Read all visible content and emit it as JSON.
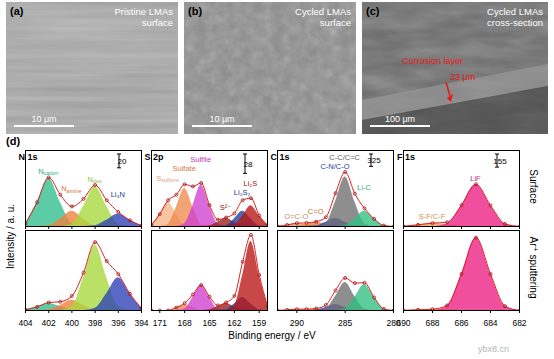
{
  "images": [
    {
      "panel": "(a)",
      "caption": [
        "Pristine LMAs",
        "surface"
      ],
      "scale_bar": "10 μm"
    },
    {
      "panel": "(b)",
      "caption": [
        "Cycled LMAs",
        "surface"
      ],
      "scale_bar": "10 μm"
    },
    {
      "panel": "(c)",
      "caption": [
        "Cycled LMAs",
        "cross-section"
      ],
      "scale_bar": "100 μm",
      "annotations": [
        {
          "text": "Corrosion layer",
          "color": "#e8191b"
        },
        {
          "text": "33 μm",
          "color": "#e8191b"
        }
      ]
    }
  ],
  "figure_label": "(d)",
  "y_label": "Intensity / a. u.",
  "x_label": "Binding energy / eV",
  "row_labels": [
    "Surface",
    "Ar⁺ sputtering"
  ],
  "watermark": "ybx8.cn",
  "chart_data": [
    {
      "type": "area",
      "title": "N 1s",
      "scale_bar": 20,
      "tick_labels": false,
      "x": [
        404,
        403,
        402,
        401,
        400,
        399,
        398,
        397,
        396,
        395,
        394
      ],
      "xlim": [
        404,
        394
      ],
      "xticks": [
        404,
        402,
        400,
        398,
        396,
        394
      ],
      "ylim": [
        0,
        110
      ],
      "series": [
        {
          "name": "N",
          "subscript": "cation",
          "color": "#2dbe8c",
          "values": [
            4,
            35,
            70,
            35,
            4,
            0,
            0,
            0,
            0,
            0,
            0
          ]
        },
        {
          "name": "N",
          "subscript": "amine",
          "color": "#ef7f3a",
          "values": [
            0,
            0,
            1,
            11,
            22,
            11,
            1,
            0,
            0,
            0,
            0
          ]
        },
        {
          "name": "N",
          "subscript": "dec",
          "color": "#a6d93b",
          "values": [
            0,
            0,
            0,
            0,
            3,
            29,
            58,
            29,
            3,
            0,
            0
          ]
        },
        {
          "name": "Li₃N",
          "color": "#2a3fb5",
          "values": [
            0,
            0,
            0,
            0,
            0,
            0,
            1,
            9,
            18,
            9,
            1
          ]
        },
        {
          "type": "line",
          "color": "#e02020",
          "marker": "circle",
          "line_style": "solid",
          "values": [
            4,
            35,
            71,
            46,
            29,
            40,
            60,
            38,
            21,
            9,
            1
          ]
        }
      ]
    },
    {
      "type": "area",
      "title": "S 2p",
      "scale_bar": 28,
      "tick_labels": false,
      "x": [
        172,
        171,
        170,
        169,
        168,
        167,
        166,
        165,
        164,
        163,
        162,
        161,
        160,
        159,
        158
      ],
      "xlim": [
        172,
        158
      ],
      "xticks": [
        171,
        168,
        165,
        162,
        159
      ],
      "ylim": [
        0,
        110
      ],
      "series": [
        {
          "name": "S",
          "subscript": "sulfone",
          "color": "#f5b58a",
          "values": [
            2,
            18,
            35,
            18,
            2,
            0,
            0,
            0,
            0,
            0,
            0,
            0,
            0,
            0,
            0
          ]
        },
        {
          "name": "Sulfate",
          "color": "#ee8a4e",
          "values": [
            0,
            0,
            3,
            28,
            55,
            28,
            3,
            0,
            0,
            0,
            0,
            0,
            0,
            0,
            0
          ]
        },
        {
          "name": "Sulfite",
          "color": "#cf3fcf",
          "values": [
            0,
            0,
            0,
            0,
            4,
            30,
            60,
            30,
            4,
            0,
            0,
            0,
            0,
            0,
            0
          ]
        },
        {
          "name": "S²⁻",
          "color": "#9a1c1c",
          "values": [
            0,
            0,
            0,
            0,
            0,
            0,
            0,
            1,
            6,
            12,
            6,
            1,
            0,
            0,
            0
          ]
        },
        {
          "name": "Li₂S₂",
          "color": "#1f3a93",
          "values": [
            0,
            0,
            0,
            0,
            0,
            0,
            0,
            0,
            0,
            1,
            11,
            22,
            11,
            1,
            0
          ]
        },
        {
          "name": "Li₂S",
          "color": "#b81414",
          "values": [
            0,
            0,
            0,
            0,
            0,
            0,
            0,
            0,
            0,
            0,
            2,
            15,
            30,
            15,
            2
          ]
        },
        {
          "type": "line",
          "color": "#e02020",
          "marker": "circle",
          "line_style": "solid",
          "values": [
            2,
            18,
            38,
            46,
            61,
            58,
            63,
            31,
            10,
            13,
            19,
            38,
            41,
            16,
            2
          ]
        }
      ]
    },
    {
      "type": "area",
      "title": "C 1s",
      "scale_bar": 325,
      "tick_labels": false,
      "x": [
        292,
        291,
        290,
        289,
        288,
        287,
        286,
        285,
        284,
        283,
        282,
        281,
        280
      ],
      "xlim": [
        292,
        280
      ],
      "xticks": [
        290,
        285,
        280
      ],
      "ylim": [
        0,
        2000
      ],
      "series": [
        {
          "name": "O=C-O",
          "color": "#d9a07a",
          "values": [
            5,
            40,
            80,
            40,
            5,
            0,
            0,
            0,
            0,
            0,
            0,
            0,
            0
          ]
        },
        {
          "name": "C=O",
          "color": "#e67a30",
          "values": [
            0,
            0,
            7,
            55,
            110,
            55,
            7,
            0,
            0,
            0,
            0,
            0,
            0
          ]
        },
        {
          "name": "C-N/C-O",
          "color": "#2040c0",
          "values": [
            0,
            0,
            0,
            0,
            13,
            110,
            220,
            110,
            13,
            0,
            0,
            0,
            0
          ]
        },
        {
          "name": "C-C/C=C",
          "color": "#6e6e6e",
          "values": [
            0,
            0,
            0,
            0,
            0,
            78,
            650,
            1300,
            650,
            78,
            0,
            0,
            0
          ]
        },
        {
          "name": "Li-C",
          "color": "#2fbf80",
          "values": [
            0,
            0,
            0,
            0,
            0,
            0,
            0,
            24,
            200,
            400,
            200,
            24,
            0
          ]
        },
        {
          "type": "line",
          "color": "#e02020",
          "marker": "circle",
          "line_style": "solid",
          "values": [
            5,
            40,
            87,
            95,
            128,
            243,
            877,
            1434,
            863,
            478,
            200,
            24,
            0
          ]
        }
      ]
    },
    {
      "type": "area",
      "title": "F 1s",
      "scale_bar": 155,
      "tick_labels": false,
      "x": [
        690,
        689,
        688,
        687,
        686,
        685,
        684,
        683,
        682
      ],
      "xlim": [
        690,
        682
      ],
      "xticks": [
        690,
        688,
        686,
        684,
        682
      ],
      "ylim": [
        0,
        900
      ],
      "series": [
        {
          "name": "S-F/C-F",
          "color": "#f0a050",
          "values": [
            2,
            20,
            40,
            20,
            2,
            0,
            0,
            0,
            0
          ]
        },
        {
          "name": "LiF",
          "color": "#ea1e82",
          "values": [
            0,
            0,
            0,
            30,
            250,
            500,
            250,
            30,
            0
          ]
        },
        {
          "type": "line",
          "color": "#e02020",
          "marker": "circle",
          "line_style": "solid",
          "values": [
            2,
            20,
            40,
            50,
            252,
            500,
            250,
            30,
            0
          ]
        }
      ]
    },
    {
      "type": "area",
      "tick_labels": "x",
      "x": [
        404,
        403,
        402,
        401,
        400,
        399,
        398,
        397,
        396,
        395,
        394
      ],
      "xlim": [
        404,
        394
      ],
      "xticks": [
        404,
        402,
        400,
        398,
        396,
        394
      ],
      "ylim": [
        0,
        110
      ],
      "series": [
        {
          "color": "#2dbe8c",
          "values": [
            1,
            5,
            10,
            5,
            1,
            0,
            0,
            0,
            0,
            0,
            0
          ]
        },
        {
          "color": "#ef7f3a",
          "values": [
            0,
            0,
            1,
            7,
            14,
            7,
            1,
            0,
            0,
            0,
            0
          ]
        },
        {
          "color": "#a6d93b",
          "values": [
            0,
            0,
            0,
            0,
            5,
            45,
            90,
            45,
            5,
            0,
            0
          ]
        },
        {
          "color": "#2a3fb5",
          "values": [
            0,
            0,
            0,
            0,
            0,
            0,
            3,
            23,
            45,
            23,
            3
          ]
        },
        {
          "type": "line",
          "color": "#e02020",
          "marker": "circle",
          "line_style": "solid",
          "values": [
            1,
            5,
            11,
            12,
            20,
            52,
            94,
            68,
            50,
            23,
            3
          ]
        }
      ]
    },
    {
      "type": "area",
      "tick_labels": "x",
      "x": [
        172,
        171,
        170,
        169,
        168,
        167,
        166,
        165,
        164,
        163,
        162,
        161,
        160,
        159,
        158
      ],
      "xlim": [
        172,
        158
      ],
      "xticks": [
        171,
        168,
        165,
        162,
        159
      ],
      "ylim": [
        0,
        110
      ],
      "series": [
        {
          "color": "#ee8a4e",
          "values": [
            0,
            0,
            0,
            4,
            8,
            4,
            0,
            0,
            0,
            0,
            0,
            0,
            0,
            0,
            0
          ]
        },
        {
          "color": "#cf3fcf",
          "values": [
            0,
            0,
            0,
            0,
            2,
            18,
            35,
            18,
            2,
            0,
            0,
            0,
            0,
            0,
            0
          ]
        },
        {
          "color": "#9a1c1c",
          "values": [
            0,
            0,
            0,
            0,
            0,
            0,
            0,
            1,
            5,
            10,
            5,
            1,
            0,
            0,
            0
          ]
        },
        {
          "color": "#1f3a93",
          "values": [
            0,
            0,
            0,
            0,
            0,
            0,
            0,
            0,
            0,
            1,
            9,
            18,
            9,
            1,
            0
          ]
        },
        {
          "color": "#b81414",
          "values": [
            0,
            0,
            0,
            0,
            0,
            0,
            0,
            0,
            0,
            0,
            6,
            48,
            95,
            48,
            6
          ]
        },
        {
          "type": "line",
          "color": "#e02020",
          "marker": "circle",
          "line_style": "solid",
          "values": [
            0,
            0,
            0,
            4,
            10,
            22,
            35,
            19,
            7,
            11,
            20,
            67,
            104,
            49,
            6
          ]
        }
      ]
    },
    {
      "type": "area",
      "tick_labels": "x",
      "x": [
        292,
        291,
        290,
        289,
        288,
        287,
        286,
        285,
        284,
        283,
        282,
        281,
        280
      ],
      "xlim": [
        292,
        280
      ],
      "xticks": [
        290,
        285,
        280
      ],
      "ylim": [
        0,
        2000
      ],
      "series": [
        {
          "color": "#d9a07a",
          "values": [
            2,
            15,
            30,
            15,
            2,
            0,
            0,
            0,
            0,
            0,
            0,
            0,
            0
          ]
        },
        {
          "color": "#e67a30",
          "values": [
            0,
            0,
            2,
            20,
            40,
            20,
            2,
            0,
            0,
            0,
            0,
            0,
            0
          ]
        },
        {
          "color": "#2040c0",
          "values": [
            0,
            0,
            0,
            0,
            9,
            75,
            150,
            75,
            9,
            0,
            0,
            0,
            0
          ]
        },
        {
          "color": "#6e6e6e",
          "values": [
            0,
            0,
            0,
            0,
            0,
            42,
            350,
            700,
            350,
            42,
            0,
            0,
            0
          ]
        },
        {
          "color": "#2fbf80",
          "values": [
            0,
            0,
            0,
            0,
            0,
            0,
            0,
            39,
            325,
            650,
            325,
            39,
            0
          ]
        },
        {
          "type": "line",
          "color": "#e02020",
          "marker": "circle",
          "line_style": "solid",
          "values": [
            2,
            15,
            32,
            35,
            51,
            137,
            502,
            814,
            684,
            692,
            325,
            39,
            0
          ]
        }
      ]
    },
    {
      "type": "area",
      "tick_labels": "x",
      "x": [
        690,
        689,
        688,
        687,
        686,
        685,
        684,
        683,
        682
      ],
      "xlim": [
        690,
        682
      ],
      "xticks": [
        690,
        688,
        686,
        684,
        682
      ],
      "ylim": [
        0,
        900
      ],
      "series": [
        {
          "color": "#f0a050",
          "values": [
            1,
            8,
            15,
            8,
            1,
            0,
            0,
            0,
            0
          ]
        },
        {
          "color": "#ea1e82",
          "values": [
            0,
            0,
            0,
            49,
            410,
            820,
            410,
            49,
            0
          ]
        },
        {
          "type": "line",
          "color": "#e02020",
          "marker": "circle",
          "line_style": "solid",
          "values": [
            1,
            8,
            15,
            57,
            411,
            820,
            410,
            49,
            0
          ]
        }
      ]
    }
  ]
}
